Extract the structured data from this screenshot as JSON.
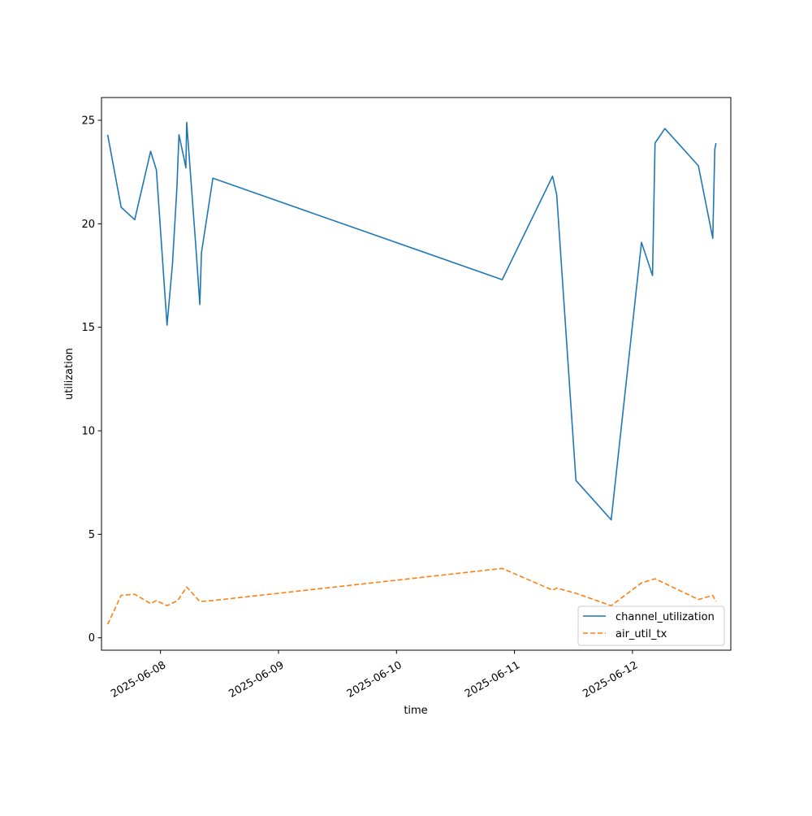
{
  "chart_data": {
    "type": "line",
    "title": "",
    "xlabel": "time",
    "ylabel": "utilization",
    "x_axis": "date",
    "xlim": [
      "2025-06-07 12:00",
      "2025-06-12 20:00"
    ],
    "ylim": [
      -0.6,
      26.1
    ],
    "x_ticks": [
      "2025-06-08",
      "2025-06-09",
      "2025-06-10",
      "2025-06-11",
      "2025-06-12"
    ],
    "y_ticks": [
      0,
      5,
      10,
      15,
      20,
      25
    ],
    "grid": false,
    "legend_position": "lower-right",
    "series": [
      {
        "name": "channel_utilization",
        "color": "#1f77b4",
        "style": "solid",
        "points": [
          [
            "2025-06-07 13:15",
            24.3
          ],
          [
            "2025-06-07 16:00",
            20.8
          ],
          [
            "2025-06-07 18:45",
            20.2
          ],
          [
            "2025-06-07 22:00",
            23.5
          ],
          [
            "2025-06-07 23:10",
            22.6
          ],
          [
            "2025-06-08 01:20",
            15.1
          ],
          [
            "2025-06-08 02:25",
            18.0
          ],
          [
            "2025-06-08 03:20",
            21.7
          ],
          [
            "2025-06-08 03:45",
            24.3
          ],
          [
            "2025-06-08 04:45",
            23.2
          ],
          [
            "2025-06-08 05:10",
            22.7
          ],
          [
            "2025-06-08 05:20",
            24.9
          ],
          [
            "2025-06-08 07:10",
            19.0
          ],
          [
            "2025-06-08 08:00",
            16.1
          ],
          [
            "2025-06-08 08:20",
            18.6
          ],
          [
            "2025-06-08 10:40",
            22.2
          ],
          [
            "2025-06-10 21:30",
            17.3
          ],
          [
            "2025-06-11 07:45",
            22.3
          ],
          [
            "2025-06-11 08:35",
            21.4
          ],
          [
            "2025-06-11 12:30",
            7.6
          ],
          [
            "2025-06-11 19:40",
            5.7
          ],
          [
            "2025-06-12 01:50",
            19.1
          ],
          [
            "2025-06-12 04:05",
            17.5
          ],
          [
            "2025-06-12 04:35",
            23.9
          ],
          [
            "2025-06-12 06:35",
            24.6
          ],
          [
            "2025-06-12 13:25",
            22.8
          ],
          [
            "2025-06-12 16:20",
            19.3
          ],
          [
            "2025-06-12 16:45",
            23.6
          ],
          [
            "2025-06-12 17:00",
            23.9
          ]
        ]
      },
      {
        "name": "air_util_tx",
        "color": "#ff7f0e",
        "style": "dashed",
        "points": [
          [
            "2025-06-07 13:15",
            0.65
          ],
          [
            "2025-06-07 16:00",
            2.05
          ],
          [
            "2025-06-07 18:45",
            2.1
          ],
          [
            "2025-06-07 22:00",
            1.65
          ],
          [
            "2025-06-07 23:10",
            1.8
          ],
          [
            "2025-06-08 01:20",
            1.55
          ],
          [
            "2025-06-08 03:30",
            1.8
          ],
          [
            "2025-06-08 05:20",
            2.45
          ],
          [
            "2025-06-08 08:00",
            1.75
          ],
          [
            "2025-06-08 10:40",
            1.8
          ],
          [
            "2025-06-10 21:30",
            3.35
          ],
          [
            "2025-06-11 07:45",
            2.3
          ],
          [
            "2025-06-11 08:35",
            2.4
          ],
          [
            "2025-06-11 12:30",
            2.15
          ],
          [
            "2025-06-11 19:40",
            1.55
          ],
          [
            "2025-06-12 01:50",
            2.65
          ],
          [
            "2025-06-12 04:35",
            2.85
          ],
          [
            "2025-06-12 13:25",
            1.85
          ],
          [
            "2025-06-12 16:20",
            2.05
          ],
          [
            "2025-06-12 17:00",
            1.75
          ]
        ]
      }
    ]
  }
}
